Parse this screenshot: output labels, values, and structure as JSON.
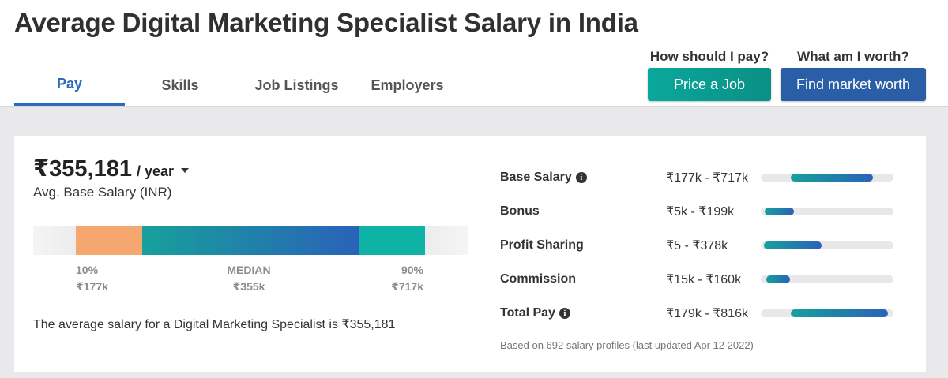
{
  "page": {
    "title": "Average Digital Marketing Specialist Salary in India"
  },
  "tabs": [
    {
      "label": "Pay",
      "active": true
    },
    {
      "label": "Skills",
      "active": false
    },
    {
      "label": "Job Listings",
      "active": false
    },
    {
      "label": "Employers",
      "active": false
    }
  ],
  "cta": {
    "price": {
      "label": "How should I pay?",
      "button": "Price a Job"
    },
    "worth": {
      "label": "What am I worth?",
      "button": "Find market worth"
    }
  },
  "salary": {
    "avg_value": "₹355,181",
    "period": "/ year",
    "avg_caption": "Avg. Base Salary (INR)",
    "percentiles": {
      "low": {
        "label": "10%",
        "value": "₹177k"
      },
      "mid": {
        "label": "MEDIAN",
        "value": "₹355k"
      },
      "high": {
        "label": "90%",
        "value": "₹717k"
      }
    },
    "summary": "The average salary for a Digital Marketing Specialist is ₹355,181"
  },
  "compensation": {
    "scale_max_k": 816,
    "rows": [
      {
        "label": "Base Salary",
        "info": true,
        "range": "₹177k - ₹717k",
        "min_k": 177,
        "max_k": 717
      },
      {
        "label": "Bonus",
        "info": false,
        "range": "₹5k - ₹199k",
        "min_k": 5,
        "max_k": 199
      },
      {
        "label": "Profit Sharing",
        "info": false,
        "range": "₹5 - ₹378k",
        "min_k": 0.005,
        "max_k": 378
      },
      {
        "label": "Commission",
        "info": false,
        "range": "₹15k - ₹160k",
        "min_k": 15,
        "max_k": 160
      },
      {
        "label": "Total Pay",
        "info": true,
        "range": "₹179k - ₹816k",
        "min_k": 179,
        "max_k": 816
      }
    ],
    "footnote": "Based on 692 salary profiles (last updated Apr 12 2022)"
  },
  "colors": {
    "accent_blue": "#2b6bbd",
    "price_btn": "#0aa89c",
    "worth_btn": "#2a5fa8",
    "low_segment": "#f6a66f",
    "high_segment": "#0fb3a6"
  },
  "icons": {
    "info": "info-icon",
    "dropdown": "chevron-down-icon"
  }
}
